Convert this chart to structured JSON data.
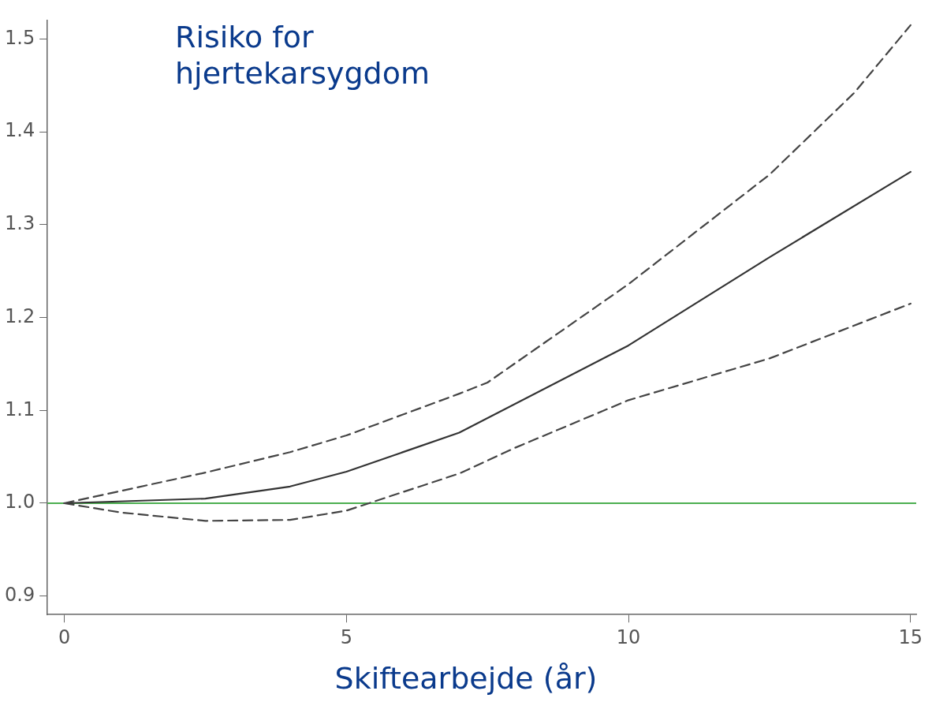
{
  "chart_data": {
    "type": "line",
    "title": "Risiko for hjertekarsygdom",
    "xlabel": "Skiftearbejde (år)",
    "xlim": [
      -0.3,
      15.1
    ],
    "xticks": [
      0,
      5,
      10,
      15
    ],
    "ylim": [
      0.88,
      1.52
    ],
    "yticks": [
      0.9,
      {
        "value": 1,
        "label": "1.0"
      },
      1.1,
      1.2,
      1.3,
      1.4,
      1.5
    ],
    "grid": false,
    "legend": false,
    "marker": "none",
    "ref_lines": [
      {
        "axis": "y",
        "value": 1.0,
        "color": "#4caf50"
      }
    ],
    "series": [
      {
        "color": "#444444",
        "line_style": "dashed",
        "x": [
          0,
          2.5,
          4,
          5,
          7,
          7.5,
          10,
          12.5,
          14,
          15
        ],
        "values": [
          1.0,
          1.033,
          1.055,
          1.073,
          1.118,
          1.13,
          1.236,
          1.354,
          1.442,
          1.515
        ]
      },
      {
        "color": "#333333",
        "line_style": "solid",
        "x": [
          0,
          2.5,
          4,
          5,
          7,
          10,
          12.5,
          15
        ],
        "values": [
          1.0,
          1.005,
          1.018,
          1.034,
          1.076,
          1.17,
          1.265,
          1.357
        ]
      },
      {
        "color": "#444444",
        "line_style": "dashed",
        "x": [
          0,
          1,
          2.5,
          4,
          5,
          7,
          8,
          10,
          12.5,
          15
        ],
        "values": [
          1.0,
          0.99,
          0.981,
          0.982,
          0.992,
          1.032,
          1.06,
          1.111,
          1.156,
          1.215
        ]
      }
    ]
  }
}
